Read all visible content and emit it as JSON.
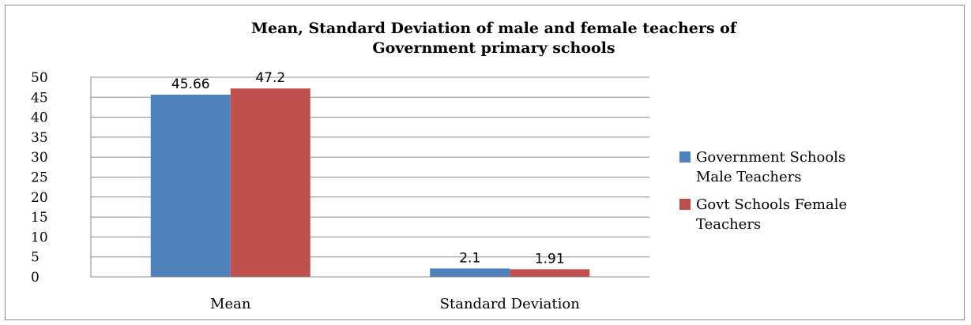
{
  "chart_data": {
    "type": "bar",
    "title": [
      "Mean, Standard Deviation of male and female teachers of",
      "Government primary schools"
    ],
    "categories": [
      "Mean",
      "Standard Deviation"
    ],
    "series": [
      {
        "name": [
          "Government Schools",
          "Male Teachers"
        ],
        "values": [
          45.66,
          2.1
        ],
        "labels": [
          "45.66",
          "2.1"
        ],
        "color": "#4f81bd"
      },
      {
        "name": [
          "Govt Schools Female",
          "Teachers"
        ],
        "values": [
          47.2,
          1.91
        ],
        "labels": [
          "47.2",
          "1.91"
        ],
        "color": "#c0504d"
      }
    ],
    "ylim": [
      0,
      50
    ],
    "yticks": [
      "0",
      "5",
      "10",
      "15",
      "20",
      "25",
      "30",
      "35",
      "40",
      "45",
      "50"
    ],
    "grid": true,
    "legend": "right"
  },
  "colors": {
    "gridline": "#8c8c8c",
    "axis": "#8c8c8c"
  }
}
